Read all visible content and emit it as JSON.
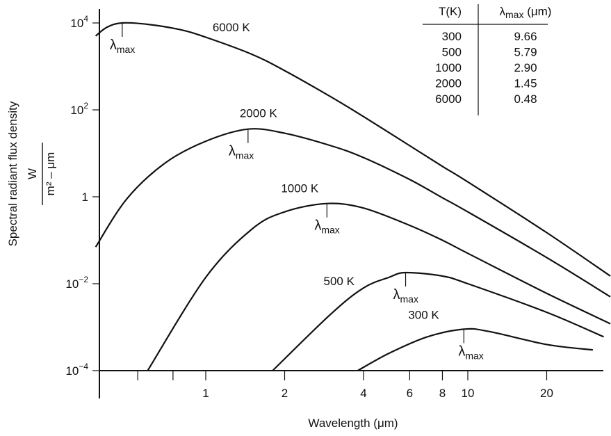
{
  "chart_data": {
    "type": "line",
    "x_scale": "log",
    "y_scale": "log",
    "xlabel": "Wavelength (μm)",
    "ylabel": {
      "main": "Spectral radiant flux density",
      "unit_numerator": "W",
      "unit_denominator": "m² – μm"
    },
    "xlim": [
      0.1,
      40
    ],
    "ylim": [
      0.0001,
      10000
    ],
    "x_ticks": [
      {
        "value": 0.55,
        "label": ""
      },
      {
        "value": 0.75,
        "label": ""
      },
      {
        "value": 1,
        "label": "1"
      },
      {
        "value": 2,
        "label": "2"
      },
      {
        "value": 4,
        "label": "4"
      },
      {
        "value": 6,
        "label": "6"
      },
      {
        "value": 8,
        "label": "8"
      },
      {
        "value": 10,
        "label": "10"
      },
      {
        "value": 20,
        "label": "20"
      }
    ],
    "y_ticks": [
      {
        "value": 0.0001,
        "label_base": "10",
        "label_exp": "−4"
      },
      {
        "value": 0.01,
        "label_base": "10",
        "label_exp": "−2"
      },
      {
        "value": 1,
        "label_base": "1",
        "label_exp": ""
      },
      {
        "value": 100,
        "label_base": "10",
        "label_exp": "2"
      },
      {
        "value": 10000,
        "label_base": "10",
        "label_exp": "4"
      }
    ],
    "lambda_label": {
      "base": "λ",
      "sub": "max"
    },
    "series": [
      {
        "name": "6000 K",
        "temperature": 6000,
        "lambda_max": 0.48,
        "peak": 10000,
        "points": [
          [
            0.38,
            5000
          ],
          [
            0.42,
            8000
          ],
          [
            0.48,
            10000
          ],
          [
            0.6,
            9300
          ],
          [
            0.8,
            7000
          ],
          [
            1.0,
            4700
          ],
          [
            1.5,
            1900
          ],
          [
            2,
            800
          ],
          [
            3,
            200
          ],
          [
            4,
            70
          ],
          [
            6,
            15
          ],
          [
            8,
            5
          ],
          [
            10,
            2.2
          ],
          [
            20,
            0.15
          ],
          [
            35,
            0.015
          ]
        ]
      },
      {
        "name": "2000 K",
        "temperature": 2000,
        "lambda_max": 1.45,
        "peak": 36,
        "points": [
          [
            0.38,
            0.07
          ],
          [
            0.5,
            0.9
          ],
          [
            0.7,
            6
          ],
          [
            1.0,
            19
          ],
          [
            1.45,
            36
          ],
          [
            2,
            29
          ],
          [
            3,
            15
          ],
          [
            4,
            8
          ],
          [
            6,
            2.5
          ],
          [
            8,
            0.95
          ],
          [
            10,
            0.45
          ],
          [
            20,
            0.04
          ],
          [
            35,
            0.005
          ]
        ]
      },
      {
        "name": "1000 K",
        "temperature": 1000,
        "lambda_max": 2.9,
        "peak": 0.7,
        "points": [
          [
            0.6,
            0.0001
          ],
          [
            1.0,
            0.014
          ],
          [
            1.5,
            0.18
          ],
          [
            2,
            0.45
          ],
          [
            2.9,
            0.7
          ],
          [
            4,
            0.55
          ],
          [
            6,
            0.22
          ],
          [
            8,
            0.1
          ],
          [
            10,
            0.05
          ],
          [
            20,
            0.006
          ],
          [
            35,
            0.0012
          ]
        ]
      },
      {
        "name": "500 K",
        "temperature": 500,
        "lambda_max": 5.79,
        "peak": 0.018,
        "points": [
          [
            1.8,
            0.0001
          ],
          [
            3,
            0.002
          ],
          [
            4,
            0.008
          ],
          [
            5,
            0.014
          ],
          [
            5.79,
            0.018
          ],
          [
            8,
            0.015
          ],
          [
            10,
            0.01
          ],
          [
            20,
            0.0022
          ],
          [
            33,
            0.0006
          ]
        ]
      },
      {
        "name": "300 K",
        "temperature": 300,
        "lambda_max": 9.66,
        "peak": 0.0009,
        "points": [
          [
            3.8,
            0.0001
          ],
          [
            5,
            0.00025
          ],
          [
            7,
            0.0006
          ],
          [
            9.66,
            0.0009
          ],
          [
            12,
            0.0008
          ],
          [
            20,
            0.0004
          ],
          [
            30,
            0.0003
          ]
        ]
      }
    ],
    "table": {
      "headers": {
        "t": "T(K)",
        "lambda_base": "λ",
        "lambda_sub": "max",
        "lambda_unit": "(μm)"
      },
      "rows": [
        {
          "t": "300",
          "l": "9.66"
        },
        {
          "t": "500",
          "l": "5.79"
        },
        {
          "t": "1000",
          "l": "2.90"
        },
        {
          "t": "2000",
          "l": "1.45"
        },
        {
          "t": "6000",
          "l": "0.48"
        }
      ]
    }
  }
}
